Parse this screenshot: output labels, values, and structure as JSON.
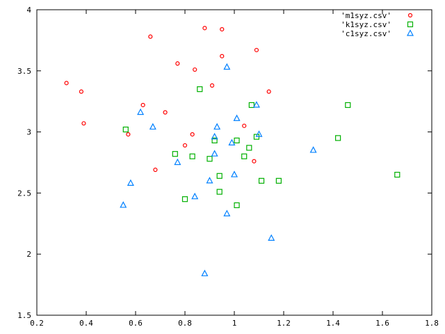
{
  "chart_data": {
    "type": "scatter",
    "title": "",
    "xlabel": "",
    "ylabel": "",
    "xlim": [
      0.2,
      1.8
    ],
    "ylim": [
      1.5,
      4
    ],
    "xticks": [
      "0.2",
      "0.4",
      "0.6",
      "0.8",
      "1",
      "1.2",
      "1.4",
      "1.6",
      "1.8"
    ],
    "yticks": [
      "1.5",
      "2",
      "2.5",
      "3",
      "3.5",
      "4"
    ],
    "grid": false,
    "legend_position": "top-right",
    "series": [
      {
        "name": "'m1syz.csv'",
        "marker": "circle",
        "color": "#ff0000",
        "x": [
          0.32,
          0.38,
          0.39,
          0.57,
          0.63,
          0.66,
          0.68,
          0.72,
          0.77,
          0.8,
          0.83,
          0.84,
          0.88,
          0.91,
          0.95,
          0.95,
          1.04,
          1.08,
          1.09,
          1.14
        ],
        "y": [
          3.4,
          3.33,
          3.07,
          2.98,
          3.22,
          3.78,
          2.69,
          3.16,
          3.56,
          2.89,
          2.98,
          3.51,
          3.85,
          3.38,
          3.84,
          3.62,
          3.05,
          2.76,
          3.67,
          3.33
        ]
      },
      {
        "name": "'k1syz.csv'",
        "marker": "square",
        "color": "#00b000",
        "x": [
          0.56,
          0.76,
          0.8,
          0.83,
          0.86,
          0.9,
          0.92,
          0.94,
          0.94,
          1.01,
          1.01,
          1.04,
          1.06,
          1.07,
          1.09,
          1.11,
          1.18,
          1.42,
          1.46,
          1.66
        ],
        "y": [
          3.02,
          2.82,
          2.45,
          2.8,
          3.35,
          2.78,
          2.93,
          2.64,
          2.51,
          2.93,
          2.4,
          2.8,
          2.87,
          3.22,
          2.96,
          2.6,
          2.6,
          2.95,
          3.22,
          2.65
        ]
      },
      {
        "name": "'c1syz.csv'",
        "marker": "triangle",
        "color": "#0080ff",
        "x": [
          0.55,
          0.58,
          0.62,
          0.67,
          0.77,
          0.84,
          0.88,
          0.9,
          0.92,
          0.92,
          0.93,
          0.97,
          0.97,
          0.99,
          1.0,
          1.01,
          1.09,
          1.1,
          1.15,
          1.32
        ],
        "y": [
          2.4,
          2.58,
          3.16,
          3.04,
          2.75,
          2.47,
          1.84,
          2.6,
          2.82,
          2.96,
          3.04,
          3.53,
          2.33,
          2.91,
          2.65,
          3.11,
          3.22,
          2.98,
          2.13,
          2.85
        ]
      }
    ]
  }
}
